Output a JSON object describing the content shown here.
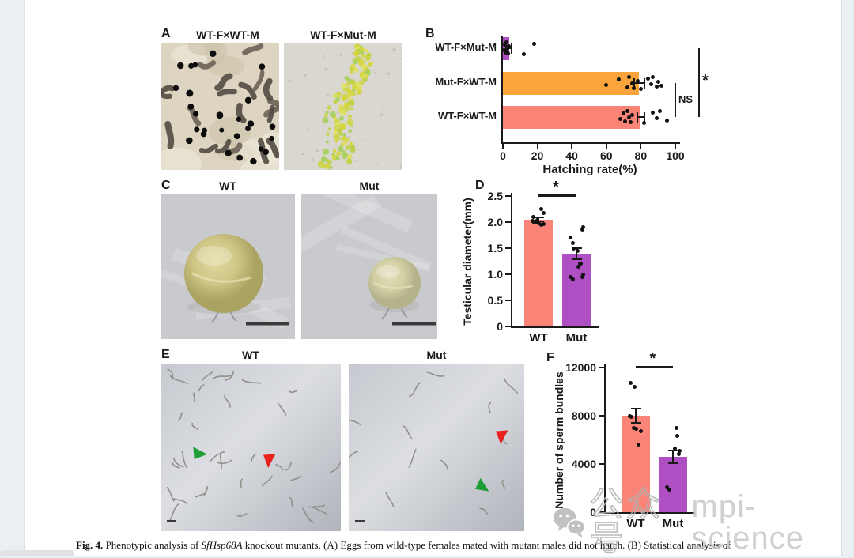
{
  "panels": {
    "a": {
      "letter": "A",
      "left_title": "WT-F×WT-M",
      "right_title": "WT-F×Mut-M"
    },
    "b": {
      "letter": "B"
    },
    "c": {
      "letter": "C",
      "left_title": "WT",
      "right_title": "Mut"
    },
    "d": {
      "letter": "D"
    },
    "e": {
      "letter": "E",
      "left_title": "WT",
      "right_title": "Mut"
    },
    "f": {
      "letter": "F"
    }
  },
  "caption": {
    "fig_label": "Fig. 4.",
    "text_before_gene": " Phenotypic analysis of ",
    "gene": "SfHsp68A",
    "text_after_gene": " knockout mutants. (A) Eggs from wild-type females mated with mutant males did not hatch. (B) Statistical analysis of"
  },
  "watermark": {
    "wechat_icon": "wechat-icon",
    "wechat_label": "公众号",
    "account": "mpi-science"
  },
  "colors": {
    "wt_bar": "#FA8478",
    "mut_bar": "#AE4FC3",
    "orange_bar": "#F9A53B",
    "dot": "#111111",
    "green_arrow": "#1f9e38",
    "red_arrow": "#e8211d"
  },
  "chart_data": [
    {
      "id": "hatching_rate",
      "panel": "B",
      "type": "bar",
      "orientation": "horizontal",
      "categories": [
        "WT-F×Mut-M",
        "Mut-F×WT-M",
        "WT-F×WT-M"
      ],
      "values": [
        3.5,
        79,
        80
      ],
      "errors": [
        2,
        3.5,
        2.5
      ],
      "bar_colors": [
        "#AE4FC3",
        "#F9A53B",
        "#FA8478"
      ],
      "points": [
        [
          0.5,
          1,
          1.5,
          2,
          2.5,
          3,
          3.5,
          12,
          18
        ],
        [
          60,
          67,
          72,
          73,
          75,
          76,
          78,
          80,
          84,
          86,
          87,
          89,
          90,
          92
        ],
        [
          68,
          70,
          71,
          72,
          73,
          74,
          75,
          82,
          87,
          89,
          91,
          95
        ]
      ],
      "xlabel": "Hatching rate(%)",
      "xlim": [
        0,
        100
      ],
      "xticks": [
        "0",
        "20",
        "40",
        "60",
        "80",
        "100"
      ],
      "grid": false,
      "brackets": [
        {
          "label": "NS",
          "from": 1,
          "to": 2
        },
        {
          "label": "*",
          "from": 0,
          "to": 2
        }
      ]
    },
    {
      "id": "testicular_diameter",
      "panel": "D",
      "type": "bar",
      "orientation": "vertical",
      "categories": [
        "WT",
        "Mut"
      ],
      "values": [
        2.05,
        1.4
      ],
      "errors": [
        0.05,
        0.12
      ],
      "bar_colors": [
        "#FA8478",
        "#AE4FC3"
      ],
      "points": [
        [
          1.95,
          1.96,
          1.98,
          2.0,
          2.0,
          2.02,
          2.04,
          2.1,
          2.18,
          2.25
        ],
        [
          0.9,
          0.95,
          0.95,
          1.0,
          1.15,
          1.2,
          1.2,
          1.45,
          1.5,
          1.6,
          1.7,
          1.85,
          1.9
        ]
      ],
      "ylabel": "Testicular diameter(mm)",
      "ylim": [
        0,
        2.5
      ],
      "yticks": [
        "0",
        "0.5",
        "1.0",
        "1.5",
        "2.0",
        "2.5"
      ],
      "grid": false,
      "significance": "*"
    },
    {
      "id": "sperm_bundles",
      "panel": "F",
      "type": "bar",
      "orientation": "vertical",
      "categories": [
        "WT",
        "Mut"
      ],
      "values": [
        8000,
        4600
      ],
      "errors": [
        650,
        600
      ],
      "bar_colors": [
        "#FA8478",
        "#AE4FC3"
      ],
      "points": [
        [
          5600,
          6700,
          6900,
          7000,
          7900,
          8000,
          10400,
          10700
        ],
        [
          1900,
          2100,
          4800,
          5100,
          5300,
          6300,
          7000
        ]
      ],
      "ylabel": "Number of sperm bundles",
      "ylim": [
        0,
        12000
      ],
      "yticks": [
        "0",
        "4000",
        "8000",
        "12000"
      ],
      "grid": false,
      "significance": "*"
    }
  ]
}
